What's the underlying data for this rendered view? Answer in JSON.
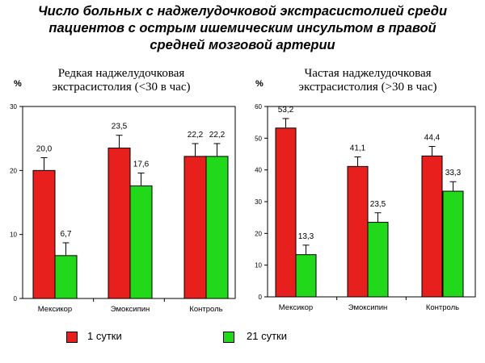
{
  "title_lines": [
    "Число больных с наджелудочковой экстрасистолией среди",
    "пациентов с острым ишемическим инсультом в правой",
    "средней мозговой артерии"
  ],
  "legend": [
    {
      "label": "1 сутки",
      "color": "#e8201d"
    },
    {
      "label": "21 сутки",
      "color": "#21d81a"
    }
  ],
  "chart_data": [
    {
      "type": "bar",
      "title_lines": [
        "Редкая наджелудочковая",
        "экстрасистолия (<30 в час)"
      ],
      "ylabel": "%",
      "ylim": [
        0,
        30
      ],
      "yticks": [
        0,
        10,
        20,
        30
      ],
      "categories": [
        "Мексикор",
        "Эмоксипин",
        "Контроль"
      ],
      "series": [
        {
          "name": "1 сутки",
          "values": [
            20.0,
            23.5,
            22.2
          ],
          "labels": [
            "20,0",
            "23,5",
            "22,2"
          ],
          "errors": [
            2.0,
            2.0,
            2.0
          ]
        },
        {
          "name": "21 сутки",
          "values": [
            6.7,
            17.6,
            22.2
          ],
          "labels": [
            "6,7",
            "17,6",
            "22,2"
          ],
          "errors": [
            2.0,
            2.0,
            2.0
          ]
        }
      ]
    },
    {
      "type": "bar",
      "title_lines": [
        "Частая наджелудочковая",
        "экстрасистолия (>30 в час)"
      ],
      "ylabel": "%",
      "ylim": [
        0,
        60
      ],
      "yticks": [
        0,
        10,
        20,
        30,
        40,
        50,
        60
      ],
      "categories": [
        "Мексикор",
        "Эмоксипин",
        "Контроль"
      ],
      "series": [
        {
          "name": "1 сутки",
          "values": [
            53.2,
            41.1,
            44.4
          ],
          "labels": [
            "53,2",
            "41,1",
            "44,4"
          ],
          "errors": [
            3.0,
            3.0,
            3.0
          ]
        },
        {
          "name": "21 сутки",
          "values": [
            13.3,
            23.5,
            33.3
          ],
          "labels": [
            "13,3",
            "23,5",
            "33,3"
          ],
          "errors": [
            3.0,
            3.0,
            3.0
          ]
        }
      ]
    }
  ]
}
